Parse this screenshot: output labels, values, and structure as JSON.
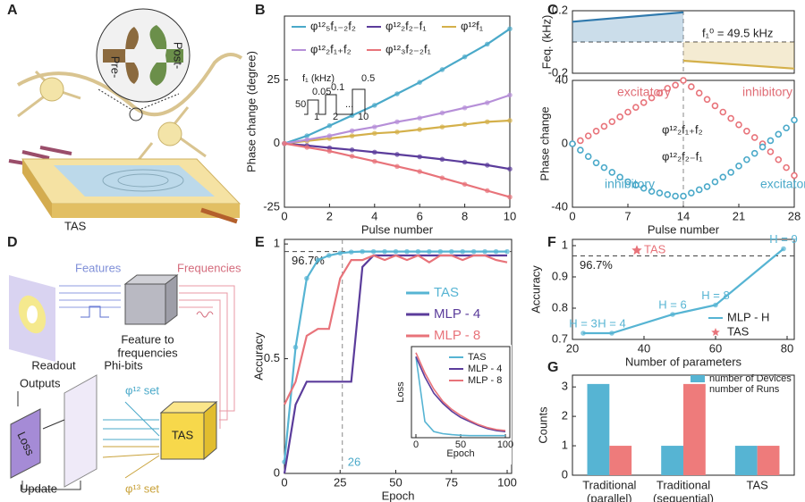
{
  "labels": [
    "A",
    "B",
    "C",
    "D",
    "E",
    "F",
    "G"
  ],
  "diagram_a": {
    "pre": "Pre-",
    "post": "Post-",
    "device": "TAS"
  },
  "diagram_d": {
    "features": "Features",
    "frequencies": "Frequencies",
    "cube": [
      "Feature to",
      "frequencies"
    ],
    "readout": "Readout",
    "phibits": "Phi-bits",
    "outputs": "Outputs",
    "loss": "Loss",
    "update": "Update",
    "set12": "φ¹² set",
    "set13": "φ¹³ set",
    "device": "TAS"
  },
  "chart_data": [
    {
      "type": "line",
      "xlabel": "Pulse number",
      "ylabel": "Phase change (degree)",
      "x": [
        0,
        1,
        2,
        3,
        4,
        5,
        6,
        7,
        8,
        9,
        10
      ],
      "xlim": [
        0,
        10
      ],
      "ylim": [
        -25,
        50
      ],
      "xticks": [
        0,
        2,
        4,
        6,
        8,
        10
      ],
      "yticks": [
        -25,
        0,
        25
      ],
      "annotations": [
        "f₁ (kHz)",
        "0.05",
        "0.1",
        "0.5",
        "50",
        "1",
        "2",
        "10",
        "..."
      ],
      "series": [
        {
          "name": "φ¹²₅f₁₋₂f₂",
          "color": "#4aa9c9",
          "mode": "lines+markers",
          "values": [
            0,
            3,
            7,
            11,
            15,
            19.5,
            24,
            29,
            34,
            39,
            45
          ]
        },
        {
          "name": "φ¹²₂f₂₋f₁",
          "color": "#5b3c9b",
          "mode": "lines+markers",
          "values": [
            0,
            -0.8,
            -1.7,
            -2.5,
            -3.4,
            -4.3,
            -5.2,
            -6.2,
            -7.3,
            -8.5,
            -10
          ]
        },
        {
          "name": "φ¹²f₁",
          "color": "#d4b04a",
          "mode": "lines+markers",
          "values": [
            0,
            1,
            2,
            3,
            4,
            4.5,
            5.5,
            6.5,
            7.5,
            8.5,
            9
          ]
        },
        {
          "name": "φ¹²₂f₁₊f₂",
          "color": "#b68fd8",
          "mode": "lines+markers",
          "values": [
            0,
            1.5,
            3,
            5,
            6.5,
            8.5,
            10,
            12,
            14,
            16,
            19
          ]
        },
        {
          "name": "φ¹²₃f₂₋₂f₁",
          "color": "#e8737a",
          "mode": "lines+markers",
          "values": [
            0,
            -1.5,
            -3,
            -5,
            -7,
            -9,
            -11,
            -13.5,
            -16,
            -18.5,
            -21
          ]
        }
      ]
    },
    {
      "type": "line",
      "ylabel": "Feq. (kHz)",
      "xlim": [
        0,
        28
      ],
      "ylim": [
        -0.2,
        0.2
      ],
      "yticks": [
        -0.2,
        0.2
      ],
      "reference_lines": [
        {
          "axis": "x",
          "value": 14
        },
        {
          "axis": "y",
          "value": 0
        }
      ],
      "annotations": [
        "f₁⁰ = 49.5 kHz"
      ],
      "series": [
        {
          "color": "#2f79ad",
          "fill": true,
          "mode": "lines",
          "x": [
            0,
            14
          ],
          "values": [
            0.13,
            0.19
          ]
        },
        {
          "color": "#d4b04a",
          "fill": true,
          "mode": "lines",
          "x": [
            14,
            28
          ],
          "values": [
            -0.12,
            -0.17
          ]
        }
      ]
    },
    {
      "type": "scatter",
      "xlabel": "Pulse number",
      "ylabel": "Phase change",
      "x": [
        0,
        1,
        2,
        3,
        4,
        5,
        6,
        7,
        8,
        9,
        10,
        11,
        12,
        13,
        14,
        15,
        16,
        17,
        18,
        19,
        20,
        21,
        22,
        23,
        24,
        25,
        26,
        27,
        28
      ],
      "xlim": [
        0,
        28
      ],
      "ylim": [
        -40,
        40
      ],
      "xticks": [
        0,
        7,
        14,
        21,
        28
      ],
      "yticks": [
        -40,
        0,
        40
      ],
      "reference_lines": [
        {
          "axis": "x",
          "value": 14
        }
      ],
      "annotations": [
        {
          "text": "excitatory",
          "color": "#e06c75"
        },
        {
          "text": "inhibitory",
          "color": "#e06c75"
        },
        {
          "text": "inhibitory",
          "color": "#4aa9c9"
        },
        {
          "text": "excitatory",
          "color": "#4aa9c9"
        }
      ],
      "series": [
        {
          "name": "φ¹²₂f₁₊f₂",
          "color": "#e8737a",
          "mode": "markers",
          "values": [
            0,
            2,
            5,
            8,
            11,
            14,
            17,
            20,
            23,
            26,
            29,
            32,
            35,
            37,
            40,
            36,
            32,
            28,
            24,
            20,
            16,
            12,
            8,
            4,
            0,
            -5,
            -10,
            -15,
            -20
          ]
        },
        {
          "name": "φ¹²₂f₂₋f₁",
          "color": "#4aa9c9",
          "mode": "markers",
          "values": [
            0,
            -4,
            -8,
            -12,
            -15,
            -18,
            -21,
            -24,
            -26,
            -28,
            -30,
            -31,
            -32,
            -33,
            -33,
            -31,
            -29,
            -27,
            -24,
            -21,
            -18,
            -14,
            -10,
            -6,
            -2,
            2,
            6,
            10,
            15
          ]
        }
      ]
    },
    {
      "type": "line",
      "xlabel": "Epoch",
      "ylabel": "Accuracy",
      "x": [
        0,
        5,
        10,
        15,
        20,
        25,
        30,
        35,
        40,
        45,
        50,
        55,
        60,
        65,
        70,
        75,
        80,
        85,
        90,
        95,
        100
      ],
      "xlim": [
        0,
        102
      ],
      "ylim": [
        0,
        1.02
      ],
      "xticks": [
        0,
        25,
        50,
        75,
        100
      ],
      "yticks": [
        0,
        0.5,
        1
      ],
      "reference_lines": [
        {
          "axis": "y",
          "value": 0.967,
          "label": "96.7%"
        },
        {
          "axis": "x",
          "value": 26,
          "label": "26"
        }
      ],
      "series": [
        {
          "name": "TAS",
          "color": "#56b4d3",
          "mode": "lines+markers",
          "values": [
            0.05,
            0.55,
            0.85,
            0.93,
            0.95,
            0.96,
            0.965,
            0.967,
            0.967,
            0.967,
            0.967,
            0.967,
            0.967,
            0.967,
            0.967,
            0.967,
            0.967,
            0.967,
            0.967,
            0.967,
            0.967
          ]
        },
        {
          "name": "MLP - 4",
          "color": "#5b3c9b",
          "mode": "lines",
          "values": [
            0,
            0.3,
            0.4,
            0.4,
            0.4,
            0.4,
            0.4,
            0.9,
            0.95,
            0.95,
            0.95,
            0.95,
            0.95,
            0.95,
            0.95,
            0.95,
            0.95,
            0.95,
            0.95,
            0.95,
            0.95
          ]
        },
        {
          "name": "MLP - 8",
          "color": "#e8737a",
          "mode": "lines",
          "values": [
            0.3,
            0.4,
            0.6,
            0.63,
            0.63,
            0.85,
            0.93,
            0.93,
            0.95,
            0.93,
            0.95,
            0.93,
            0.95,
            0.92,
            0.95,
            0.95,
            0.93,
            0.95,
            0.95,
            0.93,
            0.92
          ]
        }
      ]
    },
    {
      "type": "line",
      "xlabel": "Epoch",
      "ylabel": "Loss",
      "x": [
        0,
        10,
        20,
        30,
        40,
        50,
        60,
        70,
        80,
        90,
        100
      ],
      "xlim": [
        -5,
        105
      ],
      "ylim": [
        0,
        45
      ],
      "xticks": [
        0,
        50,
        100
      ],
      "series": [
        {
          "name": "TAS",
          "color": "#56b4d3",
          "mode": "lines",
          "values": [
            40,
            8,
            3,
            2,
            1.5,
            1.2,
            1,
            1,
            1,
            1,
            1
          ]
        },
        {
          "name": "MLP - 4",
          "color": "#5b3c9b",
          "mode": "lines",
          "values": [
            40,
            30,
            22,
            17,
            13,
            10,
            8,
            6,
            4.5,
            3.5,
            3
          ]
        },
        {
          "name": "MLP - 8",
          "color": "#e8737a",
          "mode": "lines",
          "values": [
            42,
            32,
            24,
            18,
            14,
            11,
            8.5,
            6.5,
            5,
            4,
            3.5
          ]
        }
      ]
    },
    {
      "type": "scatter",
      "xlabel": "Number of parameters",
      "ylabel": "Accuracy",
      "xlim": [
        20,
        82
      ],
      "ylim": [
        0.7,
        1.02
      ],
      "xticks": [
        20,
        40,
        60,
        80
      ],
      "yticks": [
        0.7,
        0.8,
        0.9,
        1
      ],
      "reference_lines": [
        {
          "axis": "y",
          "value": 0.967,
          "label": "96.7%"
        }
      ],
      "series": [
        {
          "name": "MLP - H",
          "color": "#56b4d3",
          "mode": "lines+markers",
          "x": [
            23,
            31,
            48,
            60,
            79
          ],
          "values": [
            0.72,
            0.72,
            0.78,
            0.81,
            0.99
          ],
          "point_labels": [
            "H = 3",
            "H = 4",
            "H = 6",
            "H = 8",
            "H = 9"
          ]
        },
        {
          "name": "TAS",
          "color": "#e8737a",
          "mode": "markers",
          "marker": "star",
          "x": [
            38
          ],
          "values": [
            0.985
          ],
          "point_labels": [
            "TAS"
          ]
        }
      ]
    },
    {
      "type": "bar",
      "ylabel": "Counts",
      "ylim": [
        0,
        3.4
      ],
      "yticks": [
        0,
        1,
        2,
        3
      ],
      "categories": [
        [
          "Traditional",
          "(parallel)"
        ],
        [
          "Traditional",
          "(sequential)"
        ],
        [
          "TAS"
        ]
      ],
      "series": [
        {
          "name": "number of Devices",
          "color": "#56b4d3",
          "values": [
            3.1,
            1,
            1
          ]
        },
        {
          "name": "number of Runs",
          "color": "#ee7b7b",
          "values": [
            1,
            3.1,
            1
          ]
        }
      ]
    }
  ]
}
